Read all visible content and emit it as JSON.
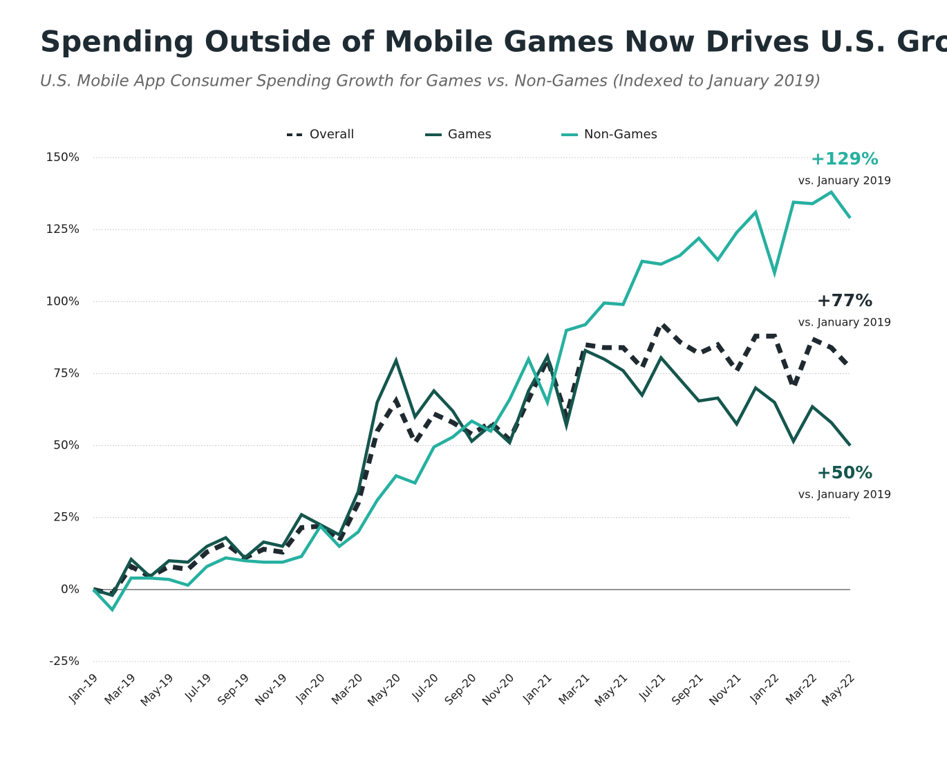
{
  "chart_data": {
    "type": "line",
    "title": "Spending Outside of Mobile Games Now Drives U.S. Growth",
    "subtitle": "U.S. Mobile App Consumer Spending Growth for Games vs. Non-Games (Indexed to January 2019)",
    "categories": [
      "Jan-19",
      null,
      "Mar-19",
      null,
      "May-19",
      null,
      "Jul-19",
      null,
      "Sep-19",
      null,
      "Nov-19",
      null,
      "Jan-20",
      null,
      "Mar-20",
      null,
      "May-20",
      null,
      "Jul-20",
      null,
      "Sep-20",
      null,
      "Nov-20",
      null,
      "Jan-21",
      null,
      "Mar-21",
      null,
      "May-21",
      null,
      "Jul-21",
      null,
      "Sep-21",
      null,
      "Nov-21",
      null,
      "Jan-22",
      null,
      "Mar-22",
      null,
      "May-22"
    ],
    "series": [
      {
        "name": "Overall",
        "color": "#1f2a30",
        "dashed": true,
        "values": [
          0,
          -1.5,
          8,
          4.5,
          8,
          7,
          13,
          16,
          11,
          14,
          13,
          21.5,
          22,
          17,
          30,
          55,
          65.5,
          51,
          61,
          58,
          54,
          58,
          52,
          66,
          80,
          60,
          85,
          84,
          84,
          77,
          92.5,
          86,
          82,
          85,
          76,
          88,
          88,
          70,
          87,
          84,
          77
        ],
        "end_label": "+77%",
        "end_note": "vs. January 2019"
      },
      {
        "name": "Games",
        "color": "#14564d",
        "dashed": false,
        "values": [
          0,
          -2,
          10.5,
          4.5,
          10,
          9.5,
          15,
          18,
          11,
          16.5,
          15,
          26,
          22.5,
          19,
          34,
          65,
          79.5,
          60,
          69,
          62,
          51.5,
          57,
          51,
          69,
          81,
          57,
          83,
          80,
          76,
          67.5,
          80.5,
          73,
          65.5,
          66.5,
          57.5,
          70,
          65,
          51.5,
          63.5,
          58,
          50
        ],
        "end_label": "+50%",
        "end_note": "vs. January 2019"
      },
      {
        "name": "Non-Games",
        "color": "#26b0a0",
        "dashed": false,
        "values": [
          0,
          -7,
          4,
          4,
          3.5,
          1.5,
          8,
          11,
          10,
          9.5,
          9.5,
          11.5,
          22,
          15,
          20,
          31,
          39.5,
          37,
          49.5,
          53,
          58.5,
          55,
          66,
          80,
          65,
          90,
          92,
          99.5,
          99,
          114,
          113,
          116,
          122,
          114.5,
          124,
          131,
          110,
          134.5,
          134,
          138,
          129
        ],
        "end_label": "+129%",
        "end_note": "vs. January 2019"
      }
    ],
    "ylim": [
      -25,
      150
    ],
    "yticks": [
      {
        "value": -25,
        "label": "-25%"
      },
      {
        "value": 0,
        "label": "0%"
      },
      {
        "value": 25,
        "label": "25%"
      },
      {
        "value": 50,
        "label": "50%"
      },
      {
        "value": 75,
        "label": "75%"
      },
      {
        "value": 100,
        "label": "100%"
      },
      {
        "value": 125,
        "label": "125%"
      },
      {
        "value": 150,
        "label": "150%"
      }
    ],
    "grid": true
  }
}
